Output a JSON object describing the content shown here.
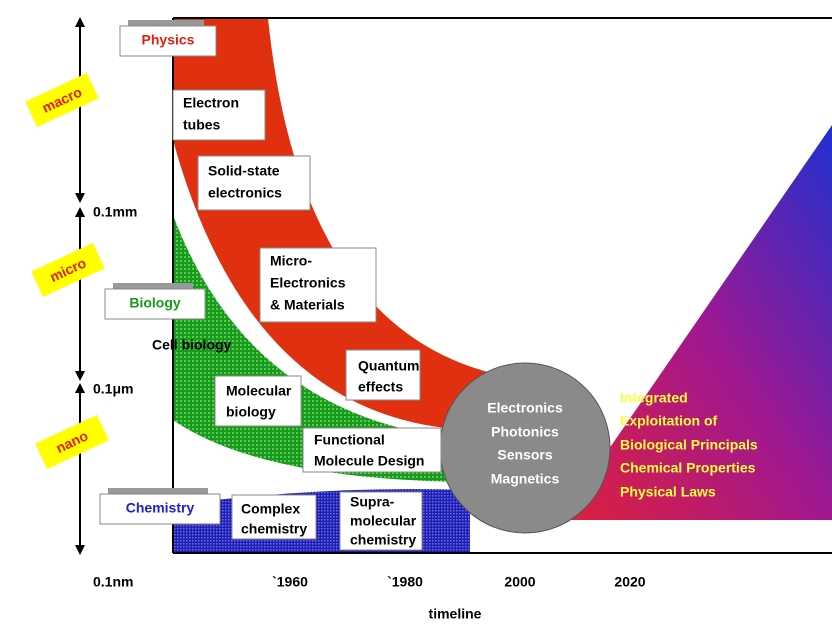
{
  "scales": [
    {
      "label": "macro"
    },
    {
      "label": "micro"
    },
    {
      "label": "nano"
    }
  ],
  "scale_ticks": [
    "0.1mm",
    "0.1μm",
    "0.1nm"
  ],
  "physics": {
    "title": "Physics",
    "items": [
      [
        "Electron",
        "tubes"
      ],
      [
        "Solid-state",
        "electronics"
      ],
      [
        "Micro-",
        "Electronics",
        "& Materials"
      ],
      [
        "Quantum",
        "effects"
      ]
    ]
  },
  "biology": {
    "title": "Biology",
    "items": [
      [
        "Cell biology"
      ],
      [
        "Molecular",
        "biology"
      ],
      [
        "Functional",
        "Molecule Design"
      ]
    ]
  },
  "chemistry": {
    "title": "Chemistry",
    "items": [
      [
        "Complex",
        "chemistry"
      ],
      [
        "Supra-",
        "molecular",
        "chemistry"
      ]
    ]
  },
  "convergence": [
    "Electronics",
    "Photonics",
    "Sensors",
    "Magnetics"
  ],
  "integrated": [
    "Integrated",
    "Exploitation of",
    "Biological Principals",
    "Chemical Properties",
    "Physical Laws"
  ],
  "timeline": {
    "ticks": [
      "`1960",
      "`1980",
      "2000",
      "2020"
    ],
    "title": "timeline"
  }
}
